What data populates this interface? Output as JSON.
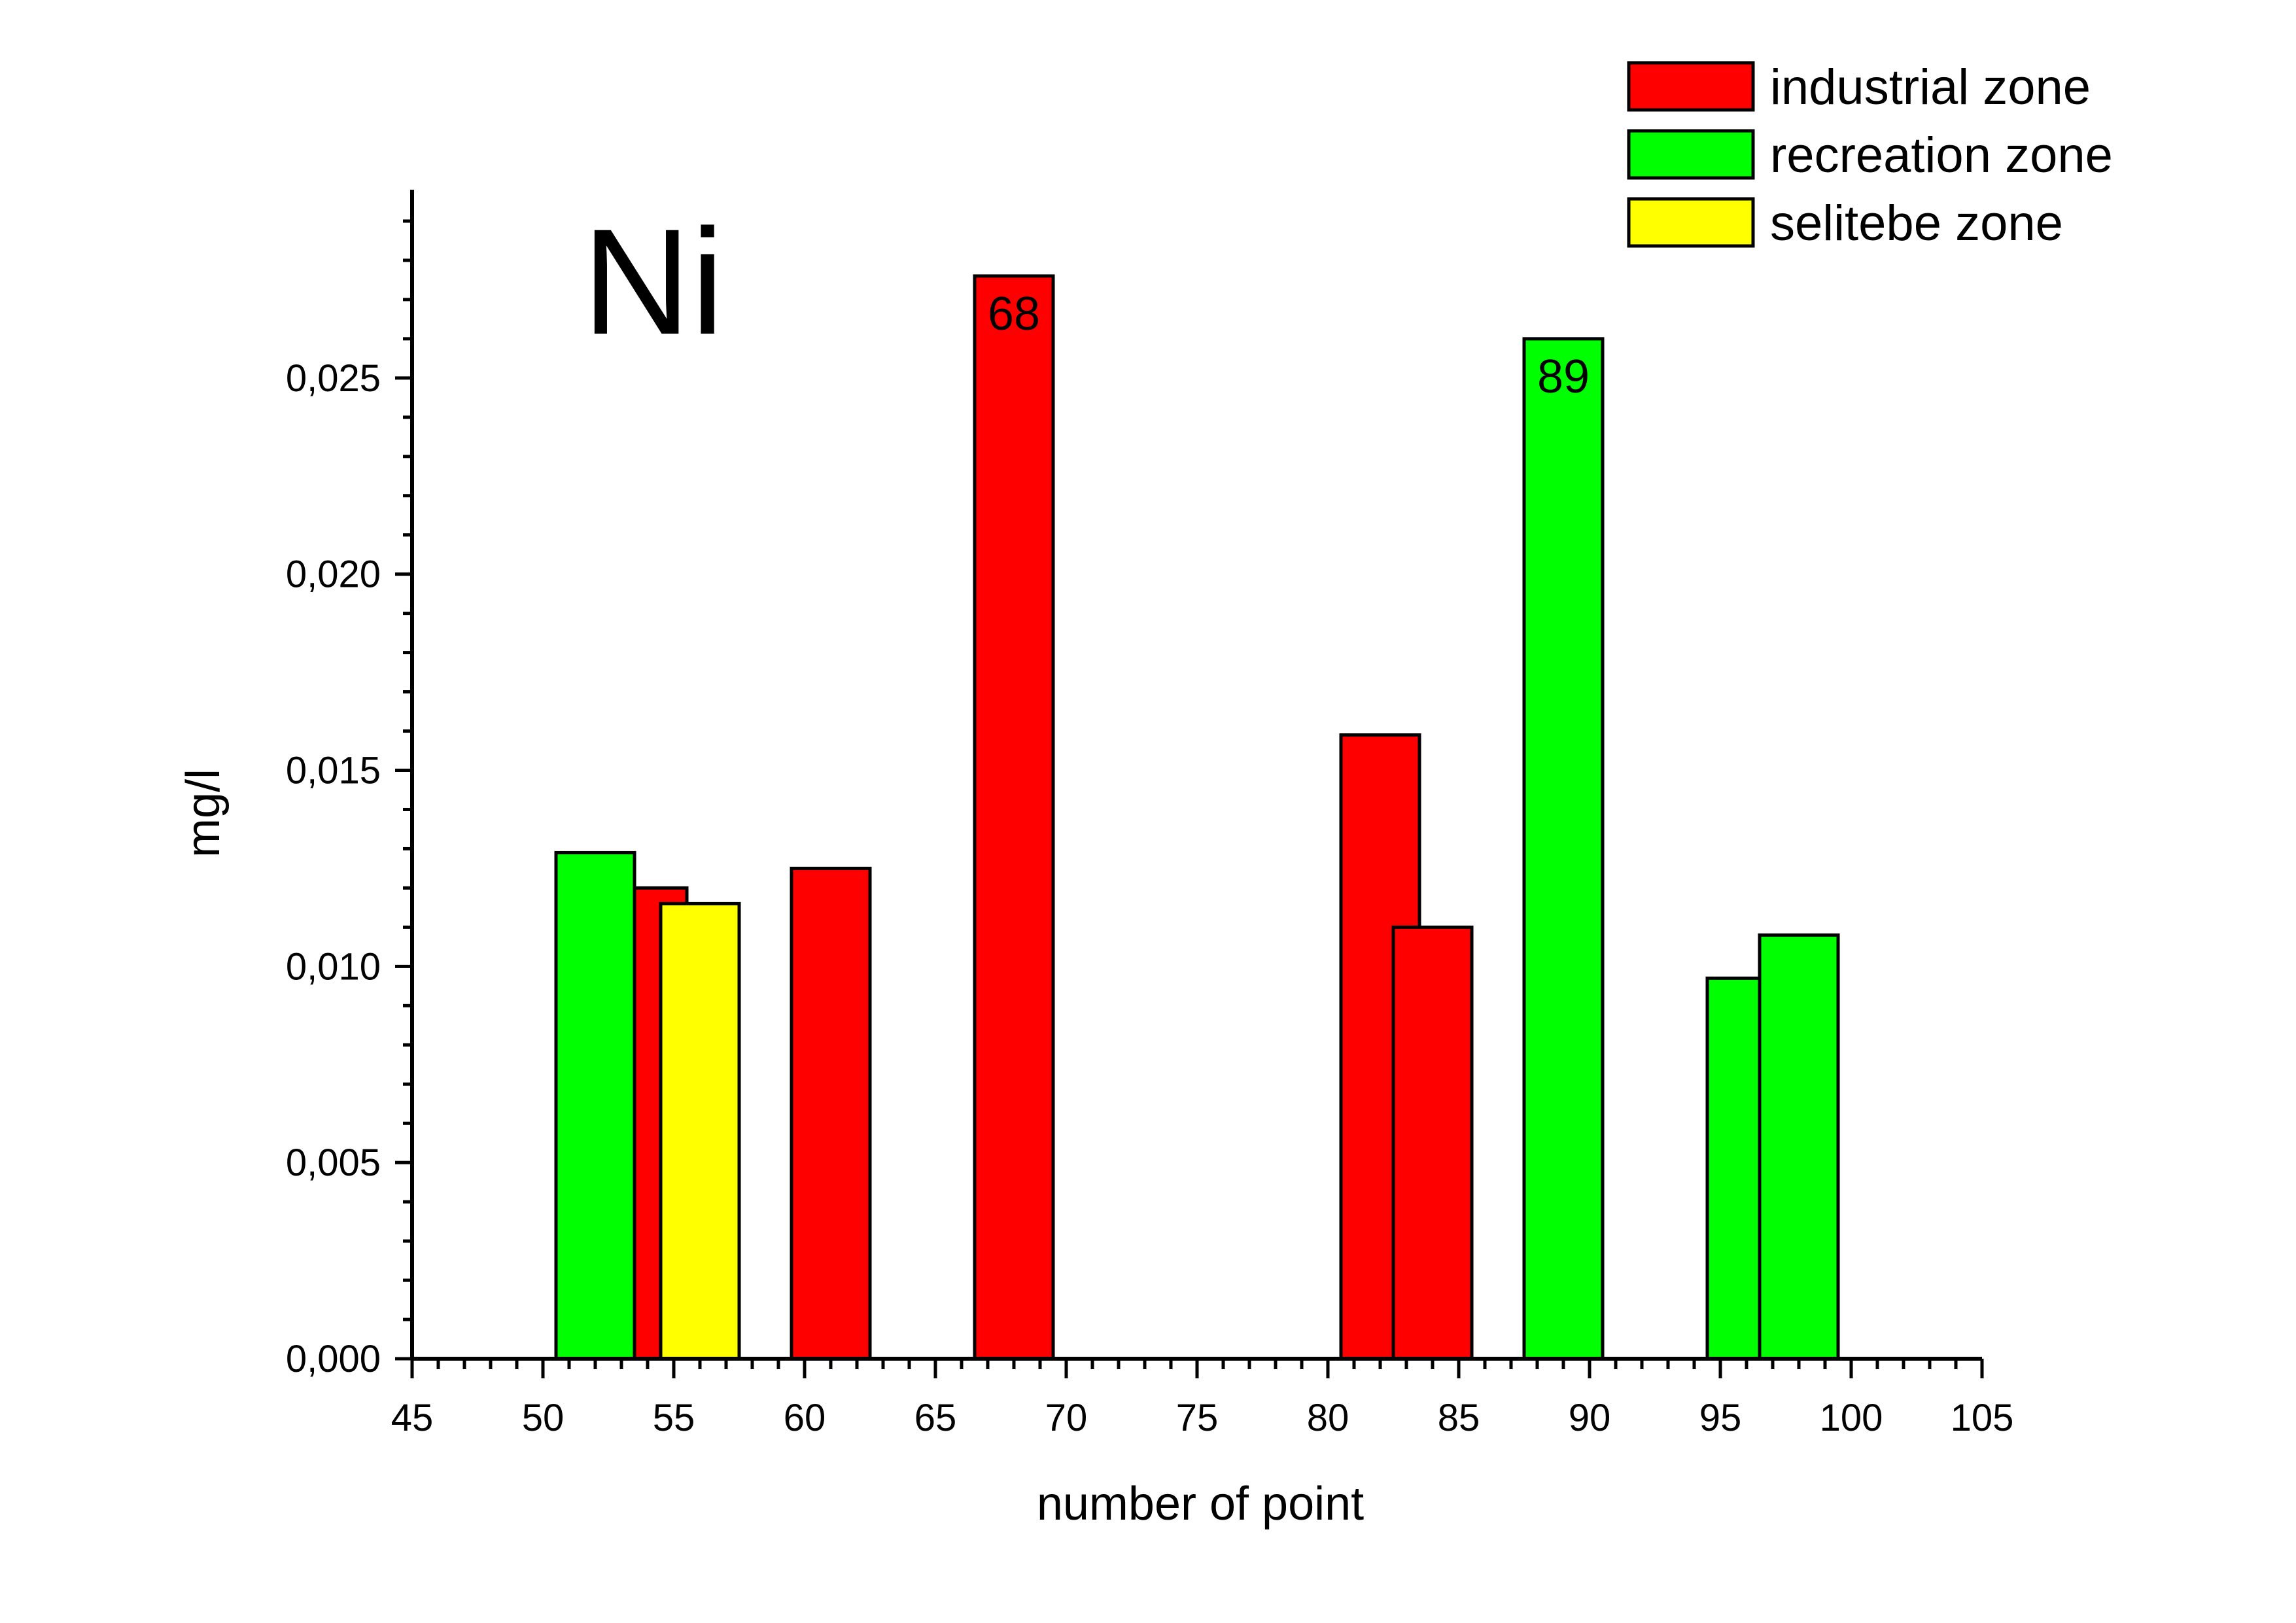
{
  "chart_data": {
    "type": "bar",
    "element_label": "Ni",
    "xlabel": "number of point",
    "ylabel": "mg/l",
    "xlim": [
      45,
      105
    ],
    "ylim": [
      0,
      0.0298
    ],
    "x_ticks": [
      "45",
      "50",
      "55",
      "60",
      "65",
      "70",
      "75",
      "80",
      "85",
      "90",
      "95",
      "100",
      "105"
    ],
    "y_ticks": [
      "0,000",
      "0,005",
      "0,010",
      "0,015",
      "0,020",
      "0,025"
    ],
    "legend_position": "top-right",
    "series": [
      {
        "name": "industrial zone",
        "color": "#ff0000",
        "points": [
          {
            "x": 54,
            "y": 0.012
          },
          {
            "x": 61,
            "y": 0.0125
          },
          {
            "x": 68,
            "y": 0.0276,
            "label": "68"
          },
          {
            "x": 82,
            "y": 0.0159
          },
          {
            "x": 84,
            "y": 0.011
          }
        ]
      },
      {
        "name": "recreation zone",
        "color": "#00ff00",
        "points": [
          {
            "x": 52,
            "y": 0.0129
          },
          {
            "x": 89,
            "y": 0.026,
            "label": "89"
          },
          {
            "x": 96,
            "y": 0.0097
          },
          {
            "x": 98,
            "y": 0.0108
          }
        ]
      },
      {
        "name": "selitebe zone",
        "color": "#ffff00",
        "points": [
          {
            "x": 56,
            "y": 0.0116
          }
        ]
      }
    ]
  }
}
